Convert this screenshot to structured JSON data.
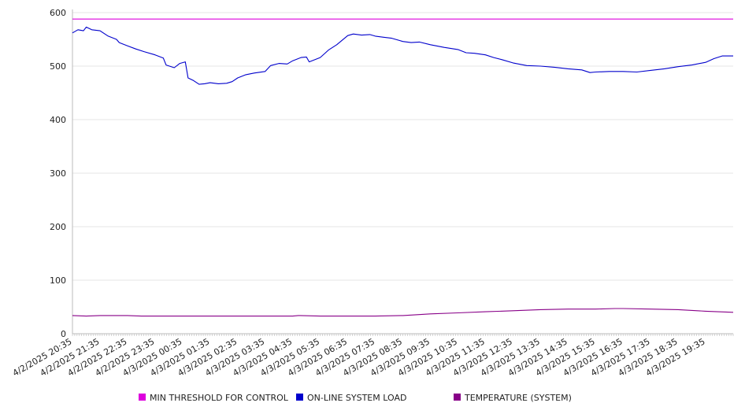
{
  "chart_data": {
    "type": "line",
    "title": "",
    "xlabel": "",
    "ylabel": "",
    "ylim": [
      0,
      600
    ],
    "yticks": [
      0,
      100,
      200,
      300,
      400,
      500,
      600
    ],
    "grid": "horizontal",
    "legend_position": "bottom",
    "x_ticks": [
      "4/2/2025 20:35",
      "4/2/2025 21:35",
      "4/2/2025 22:35",
      "4/2/2025 23:35",
      "4/3/2025 00:35",
      "4/3/2025 01:35",
      "4/3/2025 02:35",
      "4/3/2025 03:35",
      "4/3/2025 04:35",
      "4/3/2025 05:35",
      "4/3/2025 06:35",
      "4/3/2025 07:35",
      "4/3/2025 08:35",
      "4/3/2025 09:35",
      "4/3/2025 10:35",
      "4/3/2025 11:35",
      "4/3/2025 12:35",
      "4/3/2025 13:35",
      "4/3/2025 14:35",
      "4/3/2025 15:35",
      "4/3/2025 16:35",
      "4/3/2025 17:35",
      "4/3/2025 18:35",
      "4/3/2025 19:35"
    ],
    "series": [
      {
        "name": "MIN THRESHOLD FOR CONTROL",
        "color": "#dd00dd",
        "points": [
          [
            "4/2/2025 20:35",
            588
          ],
          [
            "4/3/2025 20:35",
            588
          ]
        ]
      },
      {
        "name": "ON-LINE SYSTEM LOAD",
        "color": "#0000cc",
        "points": [
          [
            "4/2/2025 20:35",
            562
          ],
          [
            "4/2/2025 20:47",
            568
          ],
          [
            "4/2/2025 20:59",
            566
          ],
          [
            "4/2/2025 21:05",
            573
          ],
          [
            "4/2/2025 21:17",
            568
          ],
          [
            "4/2/2025 21:35",
            566
          ],
          [
            "4/2/2025 21:53",
            556
          ],
          [
            "4/2/2025 22:11",
            550
          ],
          [
            "4/2/2025 22:17",
            544
          ],
          [
            "4/2/2025 22:35",
            538
          ],
          [
            "4/2/2025 22:53",
            532
          ],
          [
            "4/2/2025 23:11",
            527
          ],
          [
            "4/2/2025 23:35",
            521
          ],
          [
            "4/2/2025 23:53",
            515
          ],
          [
            "4/2/2025 23:59",
            502
          ],
          [
            "4/3/2025 00:17",
            497
          ],
          [
            "4/3/2025 00:29",
            505
          ],
          [
            "4/3/2025 00:41",
            508
          ],
          [
            "4/3/2025 00:47",
            478
          ],
          [
            "4/3/2025 00:59",
            473
          ],
          [
            "4/3/2025 01:11",
            466
          ],
          [
            "4/3/2025 01:23",
            467
          ],
          [
            "4/3/2025 01:35",
            469
          ],
          [
            "4/3/2025 01:53",
            467
          ],
          [
            "4/3/2025 02:11",
            468
          ],
          [
            "4/3/2025 02:23",
            471
          ],
          [
            "4/3/2025 02:35",
            478
          ],
          [
            "4/3/2025 02:53",
            484
          ],
          [
            "4/3/2025 03:11",
            487
          ],
          [
            "4/3/2025 03:35",
            490
          ],
          [
            "4/3/2025 03:47",
            501
          ],
          [
            "4/3/2025 04:05",
            505
          ],
          [
            "4/3/2025 04:23",
            504
          ],
          [
            "4/3/2025 04:35",
            510
          ],
          [
            "4/3/2025 04:53",
            516
          ],
          [
            "4/3/2025 05:05",
            517
          ],
          [
            "4/3/2025 05:11",
            508
          ],
          [
            "4/3/2025 05:35",
            516
          ],
          [
            "4/3/2025 05:53",
            530
          ],
          [
            "4/3/2025 06:11",
            540
          ],
          [
            "4/3/2025 06:35",
            557
          ],
          [
            "4/3/2025 06:47",
            560
          ],
          [
            "4/3/2025 07:05",
            558
          ],
          [
            "4/3/2025 07:23",
            559
          ],
          [
            "4/3/2025 07:35",
            556
          ],
          [
            "4/3/2025 07:53",
            554
          ],
          [
            "4/3/2025 08:11",
            552
          ],
          [
            "4/3/2025 08:35",
            546
          ],
          [
            "4/3/2025 08:53",
            544
          ],
          [
            "4/3/2025 09:11",
            545
          ],
          [
            "4/3/2025 09:35",
            540
          ],
          [
            "4/3/2025 10:05",
            535
          ],
          [
            "4/3/2025 10:35",
            531
          ],
          [
            "4/3/2025 10:53",
            525
          ],
          [
            "4/3/2025 11:11",
            524
          ],
          [
            "4/3/2025 11:35",
            521
          ],
          [
            "4/3/2025 11:53",
            516
          ],
          [
            "4/3/2025 12:11",
            512
          ],
          [
            "4/3/2025 12:35",
            506
          ],
          [
            "4/3/2025 13:05",
            501
          ],
          [
            "4/3/2025 13:35",
            500
          ],
          [
            "4/3/2025 14:05",
            498
          ],
          [
            "4/3/2025 14:35",
            495
          ],
          [
            "4/3/2025 15:05",
            493
          ],
          [
            "4/3/2025 15:23",
            488
          ],
          [
            "4/3/2025 15:35",
            489
          ],
          [
            "4/3/2025 16:05",
            490
          ],
          [
            "4/3/2025 16:35",
            490
          ],
          [
            "4/3/2025 17:05",
            489
          ],
          [
            "4/3/2025 17:35",
            492
          ],
          [
            "4/3/2025 18:05",
            495
          ],
          [
            "4/3/2025 18:35",
            499
          ],
          [
            "4/3/2025 19:05",
            502
          ],
          [
            "4/3/2025 19:35",
            507
          ],
          [
            "4/3/2025 19:53",
            514
          ],
          [
            "4/3/2025 20:11",
            519
          ],
          [
            "4/3/2025 20:35",
            519
          ]
        ]
      },
      {
        "name": "TEMPERATURE (SYSTEM)",
        "color": "#880088",
        "points": [
          [
            "4/2/2025 20:35",
            34
          ],
          [
            "4/2/2025 21:05",
            33
          ],
          [
            "4/2/2025 21:35",
            34
          ],
          [
            "4/2/2025 22:35",
            34
          ],
          [
            "4/2/2025 23:05",
            33
          ],
          [
            "4/3/2025 00:35",
            33
          ],
          [
            "4/3/2025 02:35",
            33
          ],
          [
            "4/3/2025 04:35",
            33
          ],
          [
            "4/3/2025 04:47",
            34
          ],
          [
            "4/3/2025 05:35",
            33
          ],
          [
            "4/3/2025 07:35",
            33
          ],
          [
            "4/3/2025 08:35",
            34
          ],
          [
            "4/3/2025 09:35",
            37
          ],
          [
            "4/3/2025 10:35",
            39
          ],
          [
            "4/3/2025 11:35",
            41
          ],
          [
            "4/3/2025 12:35",
            43
          ],
          [
            "4/3/2025 13:35",
            45
          ],
          [
            "4/3/2025 14:35",
            46
          ],
          [
            "4/3/2025 15:35",
            46
          ],
          [
            "4/3/2025 16:17",
            47
          ],
          [
            "4/3/2025 16:35",
            47
          ],
          [
            "4/3/2025 17:35",
            46
          ],
          [
            "4/3/2025 18:35",
            45
          ],
          [
            "4/3/2025 19:35",
            42
          ],
          [
            "4/3/2025 20:35",
            40
          ]
        ]
      }
    ]
  }
}
